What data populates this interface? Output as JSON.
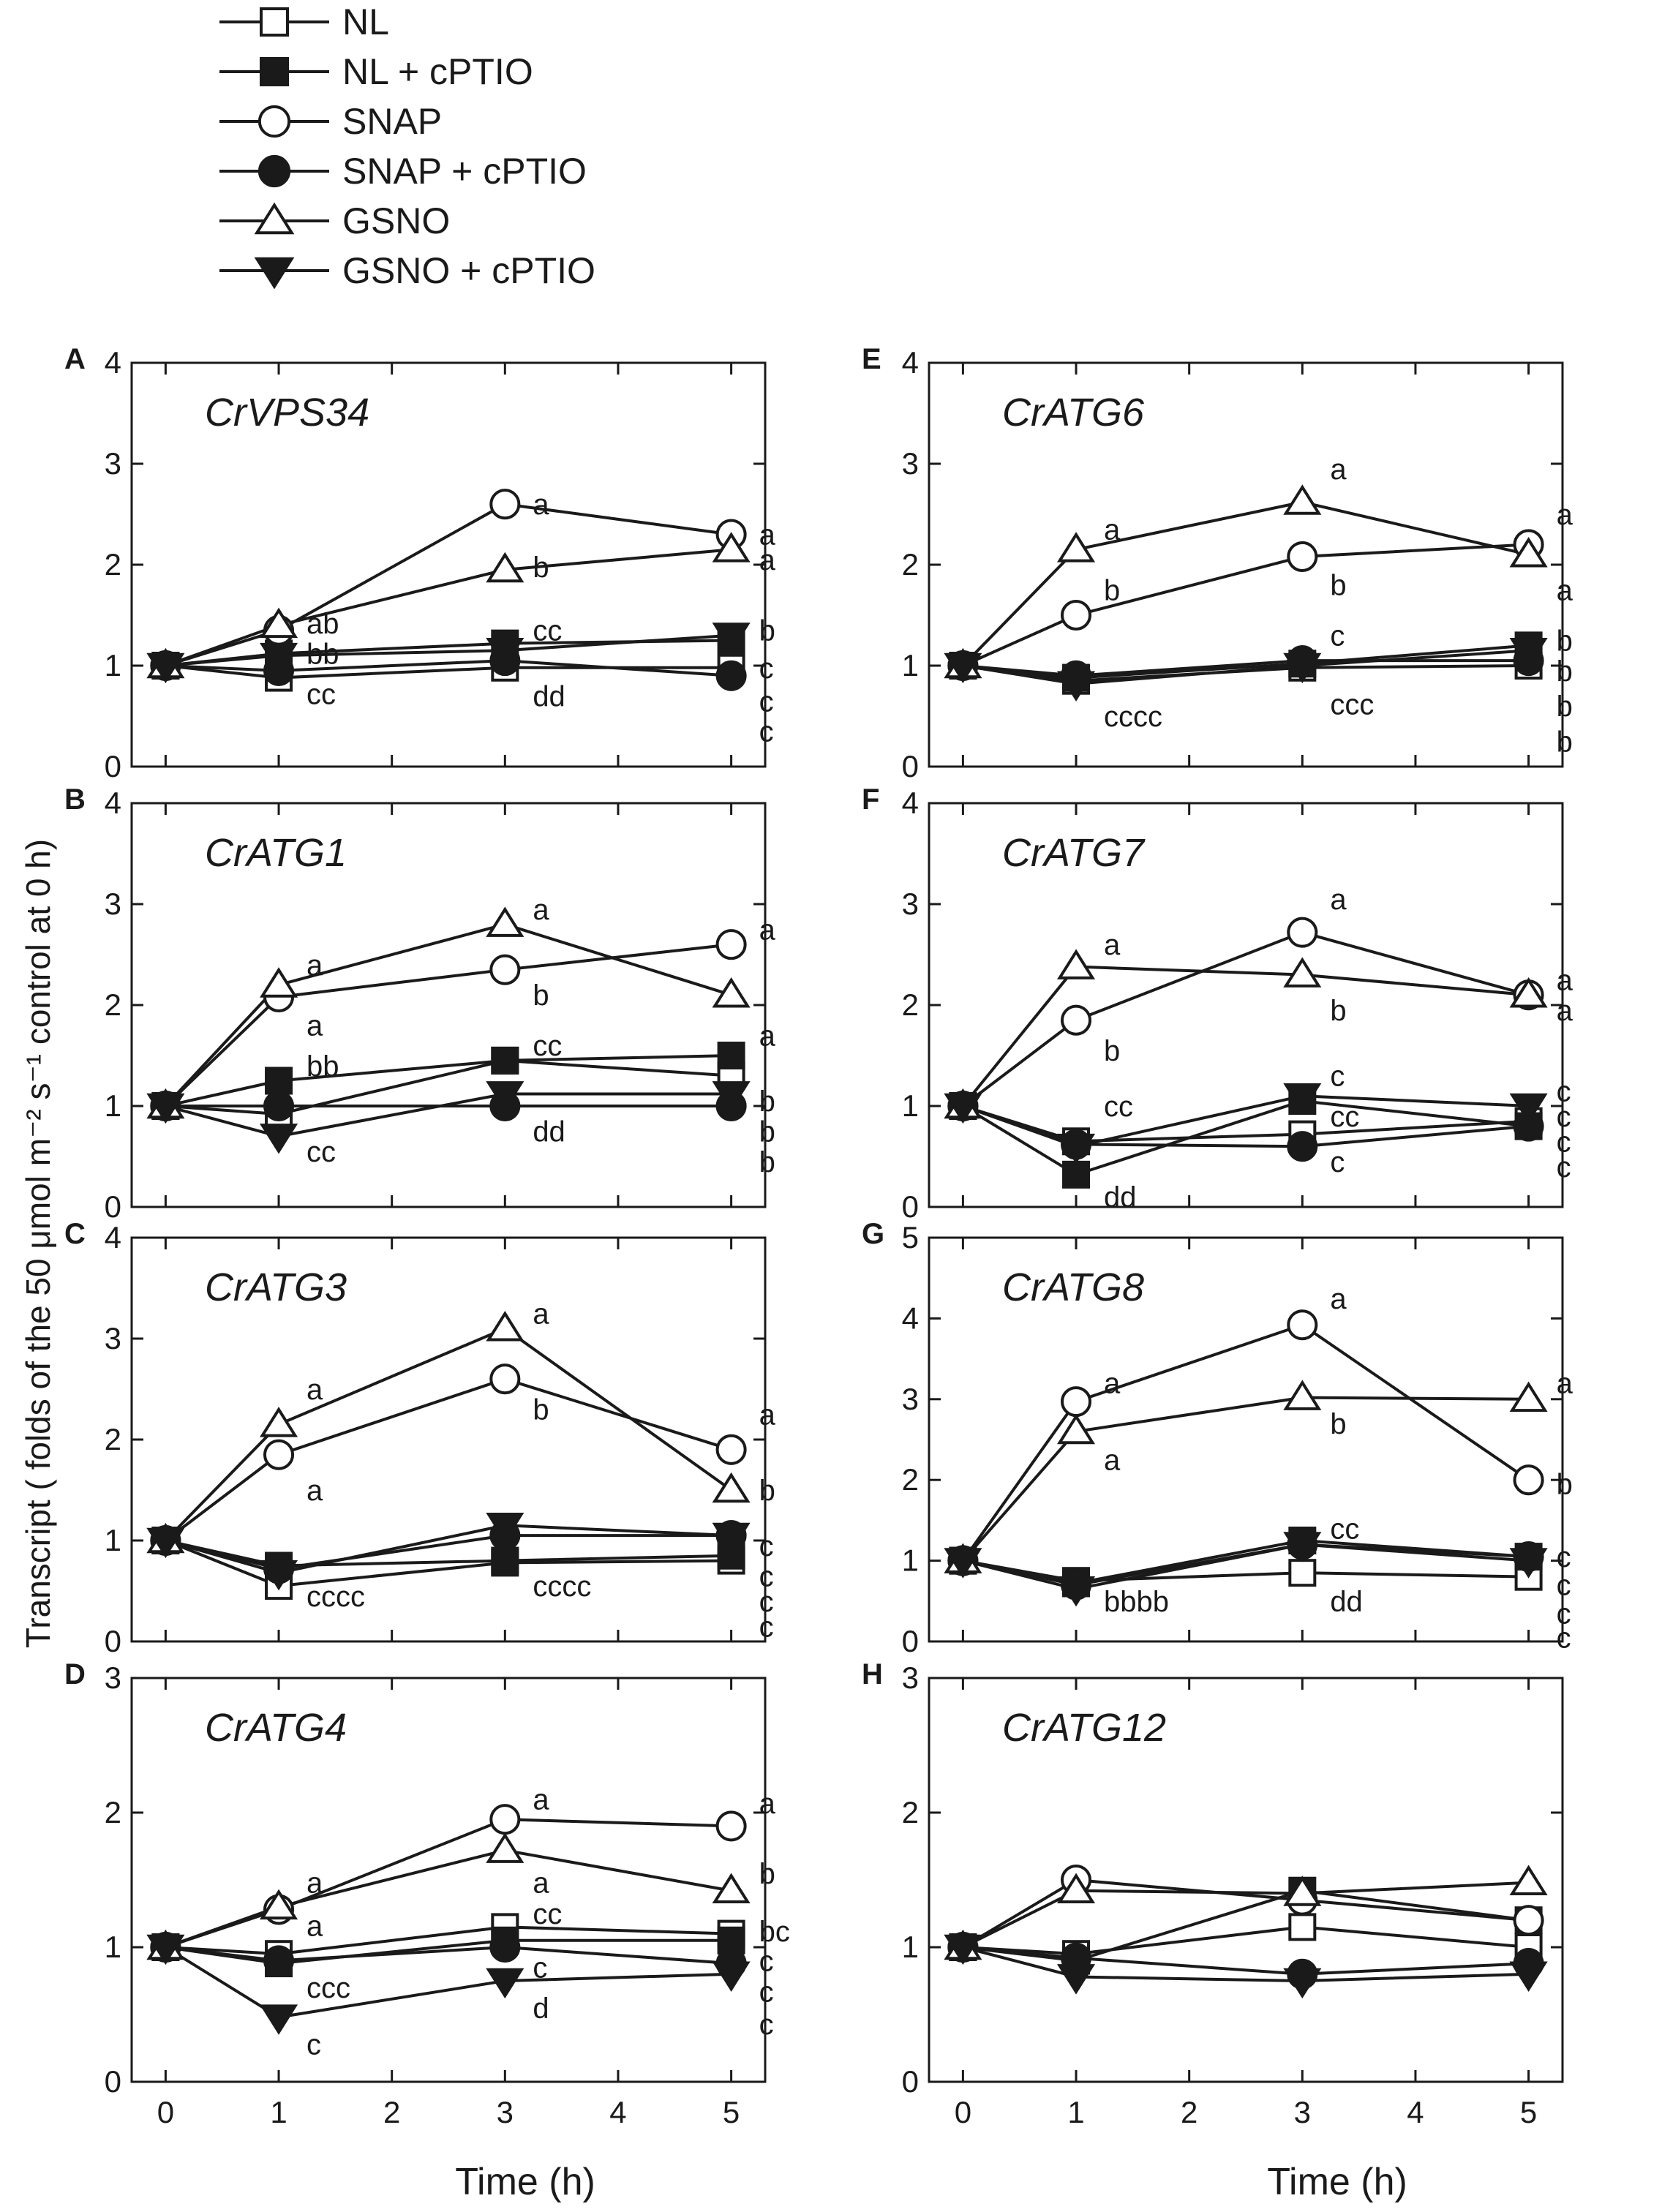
{
  "y_axis_title": "Transcript ( folds of the 50 μmol m⁻² s⁻¹ control at 0 h)",
  "x_axis_titles": [
    "Time (h)",
    "Time (h)"
  ],
  "legend": [
    {
      "name": "NL",
      "marker": "square",
      "fill": "open"
    },
    {
      "name": "NL + cPTIO",
      "marker": "square",
      "fill": "filled"
    },
    {
      "name": "SNAP",
      "marker": "circle",
      "fill": "open"
    },
    {
      "name": "SNAP + cPTIO",
      "marker": "circle",
      "fill": "filled"
    },
    {
      "name": "GSNO",
      "marker": "triangle-up",
      "fill": "open"
    },
    {
      "name": "GSNO + cPTIO",
      "marker": "triangle-down",
      "fill": "filled"
    }
  ],
  "chart_data": [
    {
      "type": "line",
      "panel": "A",
      "gene": "CrVPS34",
      "x": [
        0,
        1,
        3,
        5
      ],
      "xticks": [
        0,
        1,
        2,
        3,
        4,
        5
      ],
      "xlim": [
        -0.3,
        5.3
      ],
      "ylim": [
        0,
        4
      ],
      "yticks": [
        0,
        1,
        2,
        3,
        4
      ],
      "series": [
        {
          "name": "NL",
          "values": [
            1.0,
            0.88,
            0.98,
            0.98
          ]
        },
        {
          "name": "NL + cPTIO",
          "values": [
            1.0,
            1.12,
            1.22,
            1.25
          ]
        },
        {
          "name": "SNAP",
          "values": [
            1.0,
            1.35,
            2.6,
            2.3
          ]
        },
        {
          "name": "SNAP + cPTIO",
          "values": [
            1.0,
            0.95,
            1.05,
            0.9
          ]
        },
        {
          "name": "GSNO",
          "values": [
            1.0,
            1.4,
            1.95,
            2.15
          ]
        },
        {
          "name": "GSNO + cPTIO",
          "values": [
            1.0,
            1.1,
            1.15,
            1.3
          ]
        }
      ],
      "annotations": [
        {
          "x": 3,
          "y": 2.6,
          "text": "a"
        },
        {
          "x": 5,
          "y": 2.3,
          "text": "a"
        },
        {
          "x": 1,
          "y": 1.42,
          "text": "ab"
        },
        {
          "x": 3,
          "y": 1.98,
          "text": "b"
        },
        {
          "x": 5,
          "y": 2.05,
          "text": "a"
        },
        {
          "x": 1,
          "y": 1.12,
          "text": "bb"
        },
        {
          "x": 3,
          "y": 1.35,
          "text": "cc"
        },
        {
          "x": 5,
          "y": 1.35,
          "text": "b"
        },
        {
          "x": 5,
          "y": 0.98,
          "text": "c"
        },
        {
          "x": 1,
          "y": 0.72,
          "text": "cc"
        },
        {
          "x": 3,
          "y": 0.7,
          "text": "dd"
        },
        {
          "x": 5,
          "y": 0.65,
          "text": "c"
        },
        {
          "x": 5,
          "y": 0.35,
          "text": "c"
        }
      ]
    },
    {
      "type": "line",
      "panel": "B",
      "gene": "CrATG1",
      "x": [
        0,
        1,
        3,
        5
      ],
      "xticks": [
        0,
        1,
        2,
        3,
        4,
        5
      ],
      "xlim": [
        -0.3,
        5.3
      ],
      "ylim": [
        0,
        4
      ],
      "yticks": [
        0,
        1,
        2,
        3,
        4
      ],
      "series": [
        {
          "name": "NL",
          "values": [
            1.0,
            0.92,
            1.45,
            1.3
          ]
        },
        {
          "name": "NL + cPTIO",
          "values": [
            1.0,
            1.25,
            1.45,
            1.5
          ]
        },
        {
          "name": "SNAP",
          "values": [
            1.0,
            2.08,
            2.35,
            2.6
          ]
        },
        {
          "name": "SNAP + cPTIO",
          "values": [
            1.0,
            1.0,
            1.0,
            1.0
          ]
        },
        {
          "name": "GSNO",
          "values": [
            1.0,
            2.2,
            2.8,
            2.1
          ]
        },
        {
          "name": "GSNO + cPTIO",
          "values": [
            1.0,
            0.7,
            1.12,
            1.12
          ]
        }
      ],
      "annotations": [
        {
          "x": 3,
          "y": 2.95,
          "text": "a"
        },
        {
          "x": 5,
          "y": 2.75,
          "text": "a"
        },
        {
          "x": 1,
          "y": 2.4,
          "text": "a"
        },
        {
          "x": 3,
          "y": 2.1,
          "text": "b"
        },
        {
          "x": 1,
          "y": 1.8,
          "text": "a"
        },
        {
          "x": 5,
          "y": 1.7,
          "text": "a"
        },
        {
          "x": 1,
          "y": 1.4,
          "text": "bb"
        },
        {
          "x": 3,
          "y": 1.6,
          "text": "cc"
        },
        {
          "x": 5,
          "y": 1.05,
          "text": "b"
        },
        {
          "x": 3,
          "y": 0.75,
          "text": "dd"
        },
        {
          "x": 5,
          "y": 0.75,
          "text": "b"
        },
        {
          "x": 1,
          "y": 0.55,
          "text": "cc"
        },
        {
          "x": 5,
          "y": 0.45,
          "text": "b"
        }
      ]
    },
    {
      "type": "line",
      "panel": "C",
      "gene": "CrATG3",
      "x": [
        0,
        1,
        3,
        5
      ],
      "xticks": [
        0,
        1,
        2,
        3,
        4,
        5
      ],
      "xlim": [
        -0.3,
        5.3
      ],
      "ylim": [
        0,
        4
      ],
      "yticks": [
        0,
        1,
        2,
        3,
        4
      ],
      "series": [
        {
          "name": "NL",
          "values": [
            1.0,
            0.55,
            0.78,
            0.8
          ]
        },
        {
          "name": "NL + cPTIO",
          "values": [
            1.0,
            0.75,
            0.8,
            0.85
          ]
        },
        {
          "name": "SNAP",
          "values": [
            1.0,
            1.85,
            2.6,
            1.9
          ]
        },
        {
          "name": "SNAP + cPTIO",
          "values": [
            1.0,
            0.72,
            1.05,
            1.05
          ]
        },
        {
          "name": "GSNO",
          "values": [
            1.0,
            2.15,
            3.1,
            1.5
          ]
        },
        {
          "name": "GSNO + cPTIO",
          "values": [
            1.0,
            0.68,
            1.15,
            1.05
          ]
        }
      ],
      "annotations": [
        {
          "x": 3,
          "y": 3.25,
          "text": "a"
        },
        {
          "x": 1,
          "y": 2.5,
          "text": "a"
        },
        {
          "x": 5,
          "y": 2.25,
          "text": "a"
        },
        {
          "x": 3,
          "y": 2.3,
          "text": "b"
        },
        {
          "x": 1,
          "y": 1.5,
          "text": "a"
        },
        {
          "x": 5,
          "y": 1.5,
          "text": "b"
        },
        {
          "x": 5,
          "y": 0.95,
          "text": "c"
        },
        {
          "x": 1,
          "y": 0.45,
          "text": "cccc"
        },
        {
          "x": 3,
          "y": 0.55,
          "text": "cccc"
        },
        {
          "x": 5,
          "y": 0.65,
          "text": "c"
        },
        {
          "x": 5,
          "y": 0.4,
          "text": "c"
        },
        {
          "x": 5,
          "y": 0.15,
          "text": "c"
        }
      ]
    },
    {
      "type": "line",
      "panel": "D",
      "gene": "CrATG4",
      "x": [
        0,
        1,
        3,
        5
      ],
      "xticks": [
        0,
        1,
        2,
        3,
        4,
        5
      ],
      "xlim": [
        -0.3,
        5.3
      ],
      "ylim": [
        0,
        3
      ],
      "yticks": [
        0,
        1,
        2,
        3
      ],
      "series": [
        {
          "name": "NL",
          "values": [
            1.0,
            0.95,
            1.15,
            1.1
          ]
        },
        {
          "name": "NL + cPTIO",
          "values": [
            1.0,
            0.88,
            1.05,
            1.05
          ]
        },
        {
          "name": "SNAP",
          "values": [
            1.0,
            1.28,
            1.95,
            1.9
          ]
        },
        {
          "name": "SNAP + cPTIO",
          "values": [
            1.0,
            0.9,
            1.0,
            0.88
          ]
        },
        {
          "name": "GSNO",
          "values": [
            1.0,
            1.3,
            1.72,
            1.42
          ]
        },
        {
          "name": "GSNO + cPTIO",
          "values": [
            1.0,
            0.48,
            0.75,
            0.8
          ]
        }
      ],
      "annotations": [
        {
          "x": 3,
          "y": 2.1,
          "text": "a"
        },
        {
          "x": 5,
          "y": 2.07,
          "text": "a"
        },
        {
          "x": 1,
          "y": 1.48,
          "text": "a"
        },
        {
          "x": 3,
          "y": 1.48,
          "text": "a"
        },
        {
          "x": 1,
          "y": 1.16,
          "text": "a"
        },
        {
          "x": 5,
          "y": 1.55,
          "text": "b"
        },
        {
          "x": 3,
          "y": 1.25,
          "text": "cc"
        },
        {
          "x": 5,
          "y": 1.12,
          "text": "bc"
        },
        {
          "x": 1,
          "y": 0.7,
          "text": "ccc"
        },
        {
          "x": 3,
          "y": 0.85,
          "text": "c"
        },
        {
          "x": 5,
          "y": 0.9,
          "text": "c"
        },
        {
          "x": 3,
          "y": 0.55,
          "text": "d"
        },
        {
          "x": 5,
          "y": 0.67,
          "text": "c"
        },
        {
          "x": 1,
          "y": 0.28,
          "text": "c"
        },
        {
          "x": 5,
          "y": 0.43,
          "text": "c"
        }
      ]
    },
    {
      "type": "line",
      "panel": "E",
      "gene": "CrATG6",
      "x": [
        0,
        1,
        3,
        5
      ],
      "xticks": [
        0,
        1,
        2,
        3,
        4,
        5
      ],
      "xlim": [
        -0.3,
        5.3
      ],
      "ylim": [
        0,
        4
      ],
      "yticks": [
        0,
        1,
        2,
        3,
        4
      ],
      "series": [
        {
          "name": "NL",
          "values": [
            1.0,
            0.85,
            0.98,
            1.0
          ]
        },
        {
          "name": "NL + cPTIO",
          "values": [
            1.0,
            0.88,
            1.02,
            1.2
          ]
        },
        {
          "name": "SNAP",
          "values": [
            1.0,
            1.5,
            2.08,
            2.2
          ]
        },
        {
          "name": "SNAP + cPTIO",
          "values": [
            1.0,
            0.9,
            1.05,
            1.05
          ]
        },
        {
          "name": "GSNO",
          "values": [
            1.0,
            2.15,
            2.62,
            2.1
          ]
        },
        {
          "name": "GSNO + cPTIO",
          "values": [
            1.0,
            0.82,
            1.0,
            1.15
          ]
        }
      ],
      "annotations": [
        {
          "x": 3,
          "y": 2.95,
          "text": "a"
        },
        {
          "x": 5,
          "y": 2.5,
          "text": "a"
        },
        {
          "x": 1,
          "y": 2.35,
          "text": "a"
        },
        {
          "x": 1,
          "y": 1.75,
          "text": "b"
        },
        {
          "x": 3,
          "y": 1.8,
          "text": "b"
        },
        {
          "x": 5,
          "y": 1.75,
          "text": "a"
        },
        {
          "x": 3,
          "y": 1.3,
          "text": "c"
        },
        {
          "x": 5,
          "y": 1.25,
          "text": "b"
        },
        {
          "x": 5,
          "y": 0.95,
          "text": "b"
        },
        {
          "x": 1,
          "y": 0.5,
          "text": "cccc"
        },
        {
          "x": 3,
          "y": 0.62,
          "text": "ccc"
        },
        {
          "x": 5,
          "y": 0.6,
          "text": "b"
        },
        {
          "x": 5,
          "y": 0.25,
          "text": "b"
        }
      ]
    },
    {
      "type": "line",
      "panel": "F",
      "gene": "CrATG7",
      "x": [
        0,
        1,
        3,
        5
      ],
      "xticks": [
        0,
        1,
        2,
        3,
        4,
        5
      ],
      "xlim": [
        -0.3,
        5.3
      ],
      "ylim": [
        0,
        4
      ],
      "yticks": [
        0,
        1,
        2,
        3,
        4
      ],
      "series": [
        {
          "name": "NL",
          "values": [
            1.0,
            0.65,
            0.72,
            0.85
          ]
        },
        {
          "name": "NL + cPTIO",
          "values": [
            1.0,
            0.32,
            1.05,
            0.8
          ]
        },
        {
          "name": "SNAP",
          "values": [
            1.0,
            1.85,
            2.72,
            2.1
          ]
        },
        {
          "name": "SNAP + cPTIO",
          "values": [
            1.0,
            0.62,
            0.6,
            0.8
          ]
        },
        {
          "name": "GSNO",
          "values": [
            1.0,
            2.38,
            2.3,
            2.1
          ]
        },
        {
          "name": "GSNO + cPTIO",
          "values": [
            1.0,
            0.6,
            1.1,
            1.0
          ]
        }
      ],
      "annotations": [
        {
          "x": 3,
          "y": 3.05,
          "text": "a"
        },
        {
          "x": 1,
          "y": 2.6,
          "text": "a"
        },
        {
          "x": 5,
          "y": 2.25,
          "text": "a"
        },
        {
          "x": 3,
          "y": 1.95,
          "text": "b"
        },
        {
          "x": 5,
          "y": 1.95,
          "text": "a"
        },
        {
          "x": 1,
          "y": 1.55,
          "text": "b"
        },
        {
          "x": 3,
          "y": 1.3,
          "text": "c"
        },
        {
          "x": 1,
          "y": 1.0,
          "text": "cc"
        },
        {
          "x": 5,
          "y": 1.15,
          "text": "c"
        },
        {
          "x": 3,
          "y": 0.9,
          "text": "cc"
        },
        {
          "x": 5,
          "y": 0.9,
          "text": "c"
        },
        {
          "x": 3,
          "y": 0.45,
          "text": "c"
        },
        {
          "x": 5,
          "y": 0.65,
          "text": "c"
        },
        {
          "x": 1,
          "y": 0.1,
          "text": "dd"
        },
        {
          "x": 5,
          "y": 0.4,
          "text": "c"
        }
      ]
    },
    {
      "type": "line",
      "panel": "G",
      "gene": "CrATG8",
      "x": [
        0,
        1,
        3,
        5
      ],
      "xticks": [
        0,
        1,
        2,
        3,
        4,
        5
      ],
      "xlim": [
        -0.3,
        5.3
      ],
      "ylim": [
        0,
        5
      ],
      "yticks": [
        0,
        1,
        2,
        3,
        4,
        5
      ],
      "series": [
        {
          "name": "NL",
          "values": [
            1.0,
            0.75,
            0.85,
            0.8
          ]
        },
        {
          "name": "NL + cPTIO",
          "values": [
            1.0,
            0.72,
            1.25,
            1.05
          ]
        },
        {
          "name": "SNAP",
          "values": [
            1.0,
            2.97,
            3.92,
            2.0
          ]
        },
        {
          "name": "SNAP + cPTIO",
          "values": [
            1.0,
            0.7,
            1.2,
            1.05
          ]
        },
        {
          "name": "GSNO",
          "values": [
            1.0,
            2.6,
            3.02,
            3.0
          ]
        },
        {
          "name": "GSNO + cPTIO",
          "values": [
            1.0,
            0.65,
            1.2,
            1.0
          ]
        }
      ],
      "annotations": [
        {
          "x": 3,
          "y": 4.25,
          "text": "a"
        },
        {
          "x": 1,
          "y": 3.2,
          "text": "a"
        },
        {
          "x": 5,
          "y": 3.2,
          "text": "a"
        },
        {
          "x": 3,
          "y": 2.7,
          "text": "b"
        },
        {
          "x": 1,
          "y": 2.25,
          "text": "a"
        },
        {
          "x": 5,
          "y": 1.95,
          "text": "b"
        },
        {
          "x": 3,
          "y": 1.4,
          "text": "cc"
        },
        {
          "x": 5,
          "y": 1.05,
          "text": "c"
        },
        {
          "x": 1,
          "y": 0.5,
          "text": "bbbb"
        },
        {
          "x": 3,
          "y": 0.5,
          "text": "dd"
        },
        {
          "x": 5,
          "y": 0.7,
          "text": "c"
        },
        {
          "x": 5,
          "y": 0.35,
          "text": "c"
        },
        {
          "x": 5,
          "y": 0.05,
          "text": "c"
        }
      ]
    },
    {
      "type": "line",
      "panel": "H",
      "gene": "CrATG12",
      "x": [
        0,
        1,
        3,
        5
      ],
      "xticks": [
        0,
        1,
        2,
        3,
        4,
        5
      ],
      "xlim": [
        -0.3,
        5.3
      ],
      "ylim": [
        0,
        3
      ],
      "yticks": [
        0,
        1,
        2,
        3
      ],
      "series": [
        {
          "name": "NL",
          "values": [
            1.0,
            0.95,
            1.15,
            1.0
          ]
        },
        {
          "name": "NL + cPTIO",
          "values": [
            1.0,
            0.9,
            1.42,
            1.2
          ]
        },
        {
          "name": "SNAP",
          "values": [
            1.0,
            1.5,
            1.35,
            1.2
          ]
        },
        {
          "name": "SNAP + cPTIO",
          "values": [
            1.0,
            0.92,
            0.8,
            0.88
          ]
        },
        {
          "name": "GSNO",
          "values": [
            1.0,
            1.42,
            1.4,
            1.48
          ]
        },
        {
          "name": "GSNO + cPTIO",
          "values": [
            1.0,
            0.78,
            0.75,
            0.8
          ]
        }
      ],
      "annotations": []
    }
  ]
}
